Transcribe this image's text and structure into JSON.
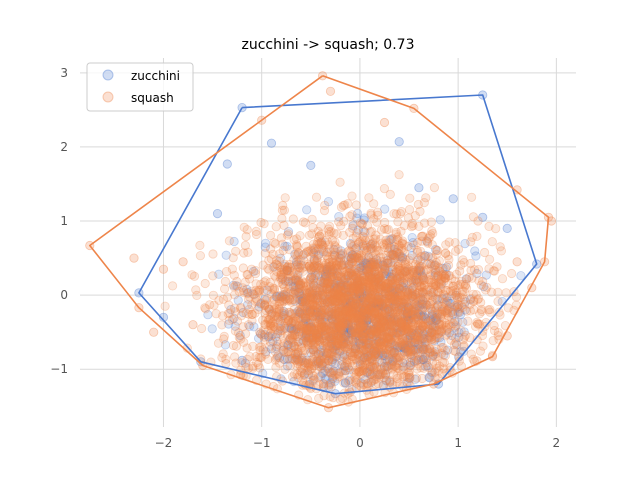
{
  "chart_data": {
    "type": "scatter",
    "title": "zucchini -> squash; 0.73",
    "xlabel": "",
    "ylabel": "",
    "xlim": [
      -2.85,
      2.2
    ],
    "ylim": [
      -1.78,
      3.2
    ],
    "xticks": [
      -2,
      -1,
      0,
      1,
      2
    ],
    "yticks": [
      -1,
      0,
      1,
      2,
      3
    ],
    "xtick_labels": [
      "−2",
      "−1",
      "0",
      "1",
      "2"
    ],
    "ytick_labels": [
      "−1",
      "0",
      "1",
      "2",
      "3"
    ],
    "grid": true,
    "legend": {
      "placement": "top-left",
      "entries": [
        "zucchini",
        "squash"
      ]
    },
    "series": [
      {
        "name": "zucchini",
        "color": "#4878cf",
        "approx_point_count": 900,
        "center": [
          0.05,
          -0.25
        ],
        "spread": [
          0.55,
          0.5
        ],
        "hull": [
          [
            -1.2,
            2.53
          ],
          [
            1.25,
            2.7
          ],
          [
            1.8,
            0.42
          ],
          [
            0.8,
            -1.2
          ],
          [
            -0.25,
            -1.33
          ],
          [
            -1.62,
            -0.9
          ],
          [
            -2.25,
            0.03
          ],
          [
            -1.2,
            2.53
          ]
        ],
        "sample_outliers": [
          [
            -1.2,
            2.53
          ],
          [
            1.25,
            2.7
          ],
          [
            -0.9,
            2.05
          ],
          [
            0.4,
            2.07
          ],
          [
            -1.35,
            1.77
          ],
          [
            1.8,
            0.42
          ],
          [
            1.5,
            0.9
          ],
          [
            -2.25,
            0.03
          ],
          [
            -2.0,
            -0.3
          ],
          [
            -1.62,
            -0.9
          ],
          [
            -1.2,
            -0.88
          ],
          [
            -0.25,
            -1.33
          ],
          [
            0.8,
            -1.2
          ],
          [
            1.25,
            1.05
          ],
          [
            -1.45,
            1.1
          ],
          [
            0.95,
            1.3
          ],
          [
            -0.5,
            1.75
          ],
          [
            0.6,
            1.45
          ]
        ]
      },
      {
        "name": "squash",
        "color": "#ee854a",
        "approx_point_count": 3000,
        "center": [
          0.0,
          -0.2
        ],
        "spread": [
          0.6,
          0.55
        ],
        "hull": [
          [
            -0.38,
            2.96
          ],
          [
            0.55,
            2.52
          ],
          [
            1.92,
            1.05
          ],
          [
            1.88,
            0.45
          ],
          [
            1.35,
            -0.83
          ],
          [
            0.75,
            -1.2
          ],
          [
            -0.32,
            -1.52
          ],
          [
            -1.6,
            -0.95
          ],
          [
            -2.25,
            -0.17
          ],
          [
            -2.75,
            0.67
          ],
          [
            -0.38,
            2.96
          ]
        ],
        "sample_outliers": [
          [
            -0.38,
            2.96
          ],
          [
            -0.3,
            2.75
          ],
          [
            0.55,
            2.52
          ],
          [
            0.25,
            2.33
          ],
          [
            1.92,
            1.05
          ],
          [
            1.88,
            0.45
          ],
          [
            1.95,
            1.0
          ],
          [
            1.6,
            0.45
          ],
          [
            1.35,
            -0.83
          ],
          [
            0.75,
            -1.2
          ],
          [
            -0.32,
            -1.52
          ],
          [
            -1.6,
            -0.95
          ],
          [
            -2.25,
            -0.17
          ],
          [
            -2.75,
            0.67
          ],
          [
            -2.3,
            0.5
          ],
          [
            -2.0,
            0.35
          ],
          [
            -1.8,
            0.45
          ],
          [
            -1.0,
            2.36
          ],
          [
            1.6,
            1.42
          ],
          [
            -1.7,
            -0.4
          ],
          [
            -2.1,
            -0.5
          ],
          [
            1.75,
            0.1
          ],
          [
            1.5,
            -0.55
          ]
        ]
      }
    ]
  }
}
